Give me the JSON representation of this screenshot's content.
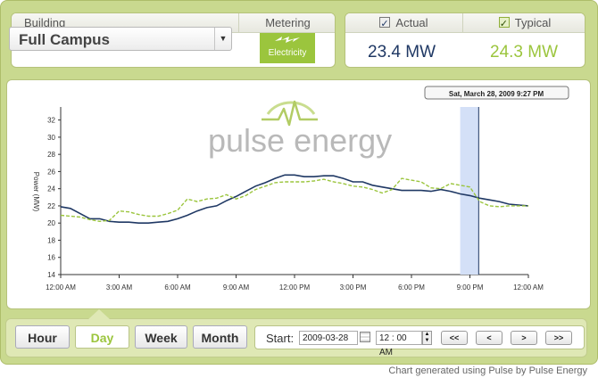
{
  "header": {
    "building_label": "Building",
    "building_value": "Full Campus",
    "metering_label": "Metering",
    "metering_value": "Electricity",
    "actual_label": "Actual",
    "actual_value": "23.4 MW",
    "typical_label": "Typical",
    "typical_value": "24.3 MW"
  },
  "chart": {
    "tooltip": "Sat, March 28, 2009 9:27 PM",
    "logo_text": "pulse energy"
  },
  "chart_data": {
    "type": "line",
    "ylabel": "Power (MW)",
    "ylim": [
      14,
      33
    ],
    "yticks": [
      "14",
      "16",
      "18",
      "20",
      "22",
      "24",
      "26",
      "28",
      "30",
      "32"
    ],
    "x_ticks": [
      "12:00 AM",
      "3:00 AM",
      "6:00 AM",
      "9:00 AM",
      "12:00 PM",
      "3:00 PM",
      "6:00 PM",
      "9:00 PM",
      "12:00 AM"
    ],
    "x_hours": [
      0,
      0.5,
      1,
      1.5,
      2,
      2.5,
      3,
      3.5,
      4,
      4.5,
      5,
      5.5,
      6,
      6.5,
      7,
      7.5,
      8,
      8.5,
      9,
      9.5,
      10,
      10.5,
      11,
      11.5,
      12,
      12.5,
      13,
      13.5,
      14,
      14.5,
      15,
      15.5,
      16,
      16.5,
      17,
      17.5,
      18,
      18.5,
      19,
      19.5,
      20,
      20.5,
      21,
      21.5,
      22,
      22.5,
      23,
      23.5,
      24
    ],
    "series": [
      {
        "name": "Actual",
        "color": "#1f3864",
        "values": [
          21.9,
          21.7,
          21.1,
          20.5,
          20.5,
          20.2,
          20.1,
          20.1,
          20.0,
          20.0,
          20.1,
          20.2,
          20.5,
          20.9,
          21.4,
          21.8,
          22.0,
          22.6,
          23.1,
          23.7,
          24.3,
          24.7,
          25.2,
          25.6,
          25.6,
          25.4,
          25.4,
          25.5,
          25.5,
          25.2,
          24.8,
          24.8,
          24.4,
          24.2,
          24.0,
          23.8,
          23.8,
          23.8,
          23.7,
          23.9,
          23.7,
          23.4,
          23.2,
          22.9,
          22.7,
          22.5,
          22.2,
          22.1,
          22.0
        ]
      },
      {
        "name": "Typical",
        "color": "#9bc53d",
        "values": [
          20.9,
          20.8,
          20.7,
          20.4,
          20.2,
          20.3,
          21.4,
          21.3,
          21.0,
          20.8,
          20.8,
          21.1,
          21.5,
          22.8,
          22.5,
          22.8,
          22.9,
          23.3,
          22.8,
          23.2,
          23.9,
          24.3,
          24.7,
          24.8,
          24.8,
          24.8,
          24.9,
          25.1,
          24.8,
          24.6,
          24.3,
          24.2,
          23.9,
          23.5,
          23.9,
          25.2,
          25.0,
          24.8,
          24.1,
          24.0,
          24.6,
          24.4,
          24.2,
          22.5,
          22.0,
          21.9,
          22.0,
          22.0,
          22.0
        ]
      }
    ],
    "highlight_hours": [
      20.5,
      21.45
    ]
  },
  "controls": {
    "hour": "Hour",
    "day": "Day",
    "week": "Week",
    "month": "Month",
    "start_label": "Start:",
    "start_date": "2009-03-28",
    "start_time": "12 : 00 AM",
    "first": "<<",
    "prev": "<",
    "next": ">",
    "last": ">>"
  },
  "footer": "Chart generated using Pulse by Pulse Energy",
  "colors": {
    "actual": "#1f3864",
    "typical": "#9bc53d",
    "highlight": "#d4e0f7"
  }
}
